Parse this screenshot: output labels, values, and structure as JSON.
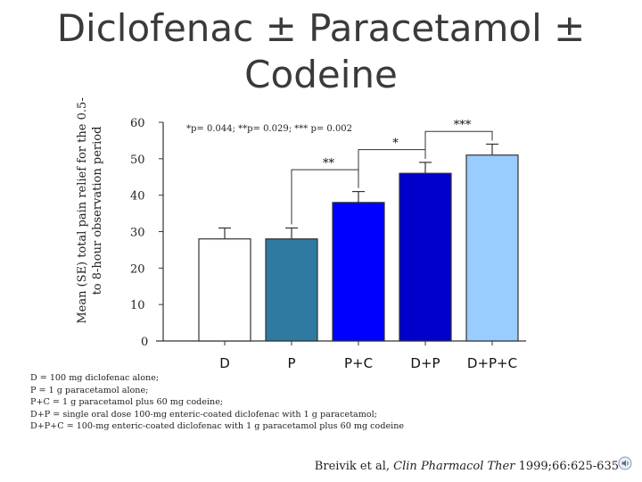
{
  "slide": {
    "title_line1": "Diclofenac ± Paracetamol ±",
    "title_line2": "Codeine",
    "footnotes": [
      "D = 100 mg diclofenac alone;",
      "P = 1 g paracetamol alone;",
      "P+C = 1 g paracetamol plus 60 mg codeine;",
      "D+P = single oral dose 100-mg enteric-coated diclofenac with 1 g paracetamol;",
      "D+P+C = 100-mg enteric-coated diclofenac with 1 g paracetamol plus 60 mg codeine"
    ],
    "citation": {
      "authors": "Breivik et al,",
      "journal": "Clin Pharmacol Ther",
      "details": "1999;66:625-635"
    }
  },
  "chart_data": {
    "type": "bar",
    "title": "Diclofenac ± Paracetamol ± Codeine",
    "ylabel": "Mean (SE) total pain relief for the 0.5- to 8-hour observation period",
    "xlabel": "",
    "categories": [
      "D",
      "P",
      "P+C",
      "D+P",
      "D+P+C"
    ],
    "values": [
      28,
      28,
      38,
      46,
      51
    ],
    "errors": [
      3,
      3,
      3,
      3,
      3
    ],
    "colors": [
      "#ffffff",
      "#2e7aa0",
      "#0000ff",
      "#0000cc",
      "#99ccff"
    ],
    "yticks": [
      0,
      10,
      20,
      30,
      40,
      50,
      60
    ],
    "ylim": [
      0,
      60
    ],
    "grid": false,
    "significance_note": "*p= 0.044; **p= 0.029; *** p= 0.002",
    "significance_brackets": [
      {
        "from": "P",
        "to": "P+C",
        "label": "**"
      },
      {
        "from": "P+C",
        "to": "D+P",
        "label": "*"
      },
      {
        "from": "D+P",
        "to": "D+P+C",
        "label": "***"
      }
    ]
  }
}
